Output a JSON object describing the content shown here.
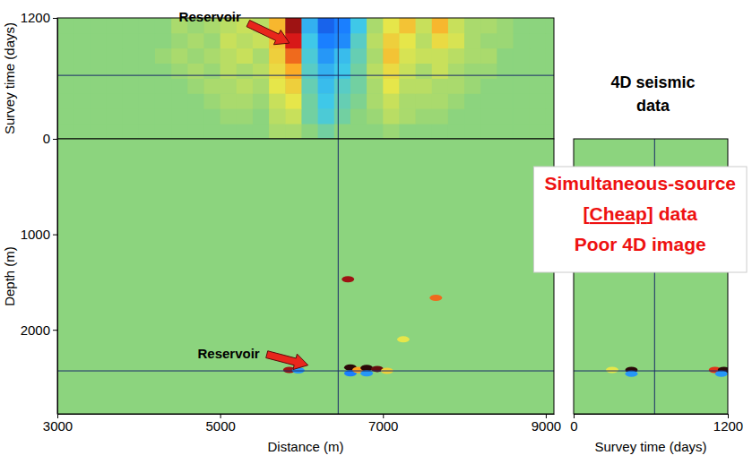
{
  "chart_data": [
    {
      "type": "heatmap",
      "title": [
        "4D seismic",
        "data"
      ],
      "ylabel": "Survey time (days)",
      "xlim": [
        3000,
        9100
      ],
      "ylim": [
        0,
        1200
      ],
      "yticks": [
        0,
        1200
      ],
      "tick_labels": "y",
      "zlim": [
        -1,
        1
      ],
      "x_edges": [
        3000,
        3200,
        3400,
        3600,
        3800,
        4000,
        4200,
        4400,
        4600,
        4800,
        5000,
        5200,
        5400,
        5600,
        5800,
        6000,
        6200,
        6400,
        6600,
        6800,
        7000,
        7200,
        7400,
        7600,
        7800,
        8000,
        8200,
        8400,
        8600,
        8800,
        9000,
        9100
      ],
      "y_edges": [
        0,
        150,
        300,
        450,
        600,
        750,
        900,
        1050,
        1200
      ],
      "values": [
        [
          0,
          0,
          0,
          0,
          0,
          0,
          0,
          0,
          0,
          0,
          0,
          0,
          0,
          0.1,
          0.1,
          0,
          -0.1,
          0,
          0,
          0,
          0.05,
          0,
          0,
          0,
          0,
          0,
          0,
          0,
          0,
          0,
          0
        ],
        [
          0,
          0,
          0,
          0,
          0,
          0,
          0,
          0,
          0,
          0,
          0.05,
          0.05,
          0,
          0.15,
          0.2,
          -0.1,
          -0.25,
          -0.1,
          0,
          0.05,
          0.15,
          0.1,
          0.05,
          0.05,
          0,
          0,
          0,
          0,
          0,
          0,
          0
        ],
        [
          0,
          0,
          0,
          0,
          0,
          0,
          0,
          0,
          0,
          0.05,
          0.1,
          0.1,
          0.05,
          0.2,
          0.3,
          -0.1,
          -0.3,
          -0.15,
          -0.05,
          0.1,
          0.2,
          0.1,
          0.1,
          0.1,
          0.05,
          0,
          0,
          0,
          0,
          0,
          0
        ],
        [
          0,
          0,
          0,
          0,
          0,
          0,
          0,
          0,
          0.05,
          0.1,
          0.1,
          0.15,
          0.1,
          0.3,
          0.4,
          -0.15,
          -0.35,
          -0.2,
          -0.1,
          0.1,
          0.3,
          0.15,
          0.15,
          0.1,
          0.1,
          0.05,
          0,
          0,
          0,
          0,
          0
        ],
        [
          0,
          0,
          0,
          0,
          0,
          0,
          0,
          0.05,
          0.1,
          0.05,
          0.15,
          0.1,
          0.15,
          0.35,
          0.55,
          -0.2,
          -0.4,
          -0.3,
          -0.1,
          0.15,
          0.35,
          0.2,
          0.1,
          0.2,
          0.1,
          0.05,
          0.05,
          0,
          0,
          0,
          0
        ],
        [
          0,
          0,
          0,
          0,
          0,
          0,
          0.05,
          0.1,
          0.05,
          0.1,
          0.15,
          0.2,
          0.1,
          0.4,
          0.7,
          -0.25,
          -0.5,
          -0.35,
          -0.15,
          0.1,
          0.45,
          0.25,
          0.2,
          0.2,
          0.15,
          0.1,
          0.1,
          0,
          0,
          0,
          0
        ],
        [
          0,
          0,
          0,
          0,
          0,
          0,
          0,
          0.05,
          0.1,
          0.05,
          0.2,
          0.15,
          0.2,
          0.45,
          0.85,
          -0.3,
          -0.6,
          -0.55,
          -0.2,
          0.15,
          0.4,
          0.3,
          0.15,
          0.35,
          0.25,
          0.1,
          0.05,
          0.05,
          0,
          0,
          0
        ],
        [
          0,
          0,
          0,
          0,
          0,
          0,
          0,
          0.1,
          0.05,
          0.1,
          0.15,
          0.2,
          0.15,
          0.5,
          0.9,
          -0.4,
          -0.7,
          -0.6,
          -0.3,
          0.1,
          0.3,
          0.45,
          0.2,
          0.5,
          0.2,
          0.1,
          0.1,
          0.05,
          0,
          0,
          0
        ]
      ],
      "annotations": [
        {
          "text": "Reservoir",
          "x": 5850,
          "y": 950
        }
      ],
      "reference_lines": {
        "x": 6450,
        "y": 630
      }
    },
    {
      "type": "heatmap",
      "title": [
        "Simultaneous-source",
        "[Cheap] data",
        "Poor 4D image"
      ],
      "xlabel": "Distance (m)",
      "ylabel": "Depth (m)",
      "xlim": [
        3000,
        9100
      ],
      "ylim": [
        2880,
        0
      ],
      "xticks": [
        3000,
        5000,
        7000,
        9000
      ],
      "yticks": [
        1000,
        2000
      ],
      "zlim": [
        -1,
        1
      ],
      "anomalies": [
        {
          "x": 5850,
          "y": 2420,
          "value": 0.9
        },
        {
          "x": 5960,
          "y": 2425,
          "value": -0.5
        },
        {
          "x": 6600,
          "y": 2395,
          "value": 1.0
        },
        {
          "x": 6600,
          "y": 2455,
          "value": -0.6
        },
        {
          "x": 6700,
          "y": 2420,
          "value": 0.6
        },
        {
          "x": 6800,
          "y": 2400,
          "value": 1.0
        },
        {
          "x": 6800,
          "y": 2455,
          "value": -0.5
        },
        {
          "x": 6930,
          "y": 2410,
          "value": 0.95
        },
        {
          "x": 7050,
          "y": 2430,
          "value": 0.4
        },
        {
          "x": 6570,
          "y": 1470,
          "value": 0.9
        },
        {
          "x": 7650,
          "y": 1665,
          "value": 0.7
        },
        {
          "x": 7250,
          "y": 2100,
          "value": 0.3
        }
      ],
      "annotations": [
        {
          "text": "Reservoir",
          "x": 6080,
          "y": 2370
        }
      ],
      "reference_lines": {
        "x": 6450,
        "y": 2430
      }
    },
    {
      "type": "heatmap",
      "xlabel": "Survey time (days)",
      "xlim": [
        0,
        1200
      ],
      "ylim": [
        2880,
        0
      ],
      "xticks": [
        0,
        1200
      ],
      "tick_labels": "x",
      "zlim": [
        -1,
        1
      ],
      "anomalies": [
        {
          "x": 450,
          "y": 2420,
          "value": 1.0
        },
        {
          "x": 450,
          "y": 2460,
          "value": -0.5
        },
        {
          "x": 1100,
          "y": 2420,
          "value": 0.8
        },
        {
          "x": 1170,
          "y": 2420,
          "value": 1.0
        },
        {
          "x": 1150,
          "y": 2460,
          "value": -0.5
        },
        {
          "x": 300,
          "y": 2420,
          "value": 0.3
        }
      ],
      "reference_lines": {
        "x": 630,
        "y": 2430
      }
    }
  ]
}
